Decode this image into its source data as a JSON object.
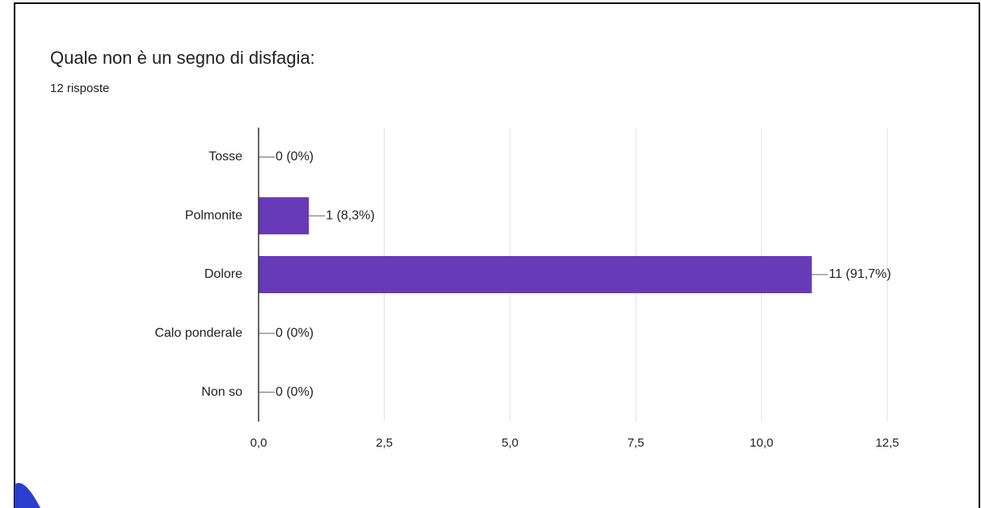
{
  "chart_data": {
    "type": "bar",
    "title": "Quale non è un segno di disfagia:",
    "subtitle": "12 risposte",
    "categories": [
      "Tosse",
      "Polmonite",
      "Dolore",
      "Calo ponderale",
      "Non so"
    ],
    "values": [
      0,
      1,
      11,
      0,
      0
    ],
    "value_labels": [
      "0 (0%)",
      "1 (8,3%)",
      "11 (91,7%)",
      "0 (0%)",
      "0 (0%)"
    ],
    "color": "#673ab7",
    "xlim": [
      0,
      12.5
    ],
    "xticks": [
      {
        "value": 0,
        "label": "0,0"
      },
      {
        "value": 2.5,
        "label": "2,5"
      },
      {
        "value": 5,
        "label": "5,0"
      },
      {
        "value": 7.5,
        "label": "7,5"
      },
      {
        "value": 10,
        "label": "10,0"
      },
      {
        "value": 12.5,
        "label": "12,5"
      }
    ],
    "grid": true
  }
}
